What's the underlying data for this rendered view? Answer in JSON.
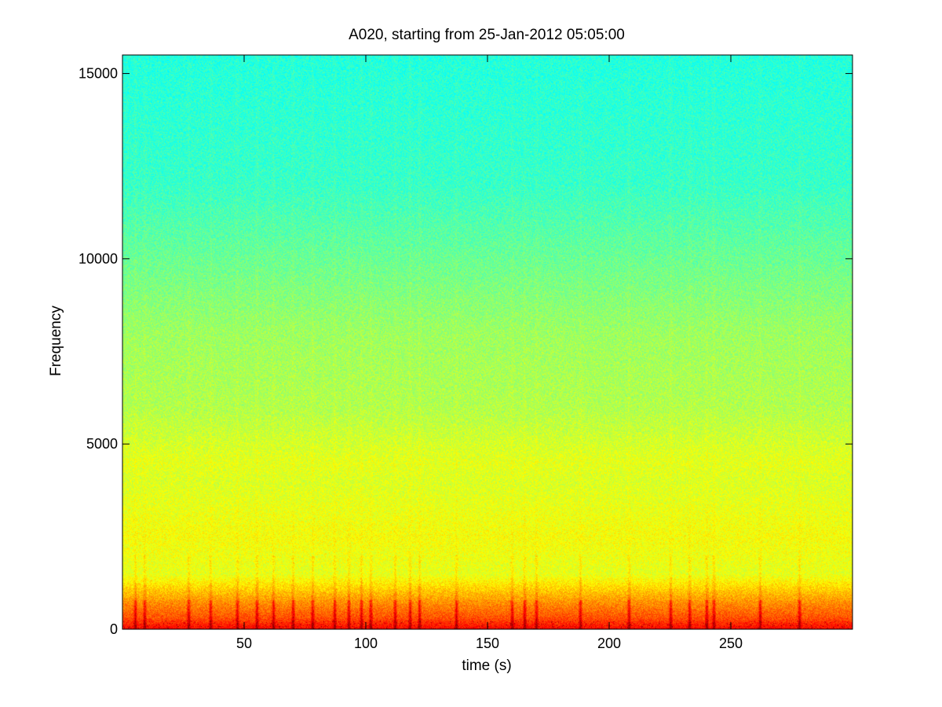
{
  "chart_data": {
    "type": "heatmap",
    "title": "A020, starting from 25-Jan-2012 05:05:00",
    "xlabel": "time (s)",
    "ylabel": "Frequency",
    "xlim": [
      0,
      300
    ],
    "ylim": [
      0,
      15500
    ],
    "xticks": [
      50,
      100,
      150,
      200,
      250
    ],
    "yticks": [
      0,
      5000,
      10000,
      15000
    ],
    "xtick_labels": [
      "50",
      "100",
      "150",
      "200",
      "250"
    ],
    "ytick_labels": [
      "0",
      "5000",
      "10000",
      "15000"
    ],
    "colormap": "jet",
    "grid": false,
    "frequency_intensity_profile": [
      {
        "frequency": 0,
        "intensity": 0.88
      },
      {
        "frequency": 300,
        "intensity": 0.8
      },
      {
        "frequency": 700,
        "intensity": 0.74
      },
      {
        "frequency": 1500,
        "intensity": 0.6
      },
      {
        "frequency": 2500,
        "intensity": 0.62
      },
      {
        "frequency": 3000,
        "intensity": 0.61
      },
      {
        "frequency": 4000,
        "intensity": 0.59
      },
      {
        "frequency": 4500,
        "intensity": 0.6
      },
      {
        "frequency": 6000,
        "intensity": 0.55
      },
      {
        "frequency": 8000,
        "intensity": 0.53
      },
      {
        "frequency": 10000,
        "intensity": 0.48
      },
      {
        "frequency": 12000,
        "intensity": 0.43
      },
      {
        "frequency": 15500,
        "intensity": 0.41
      }
    ],
    "transient_events_s": [
      5,
      9,
      27,
      36,
      47,
      55,
      62,
      70,
      78,
      87,
      93,
      98,
      102,
      112,
      118,
      122,
      137,
      160,
      165,
      170,
      188,
      208,
      225,
      233,
      240,
      243,
      262,
      278
    ]
  }
}
